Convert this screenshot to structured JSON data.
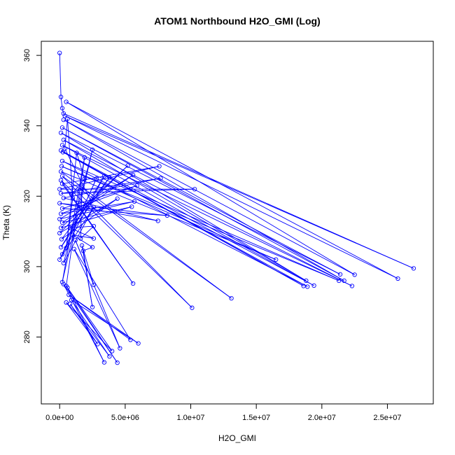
{
  "chart_data": {
    "type": "scatter",
    "title": "ATOM1 Northbound H2O_GMI (Log)",
    "xlabel": "H2O_GMI",
    "ylabel": "Theta (K)",
    "xlim": [
      -1400000,
      28500000
    ],
    "ylim": [
      261,
      364
    ],
    "x_ticks": [
      0,
      5000000,
      10000000,
      15000000,
      20000000,
      25000000
    ],
    "x_tick_labels": [
      "0.0e+00",
      "5.0e+06",
      "1.0e+07",
      "1.5e+07",
      "2.0e+07",
      "2.5e+07"
    ],
    "y_ticks": [
      280,
      300,
      320,
      340,
      360
    ],
    "y_tick_labels": [
      "280",
      "300",
      "320",
      "340",
      "360"
    ],
    "grid": false,
    "legend": "none",
    "marker": "open-circle",
    "connected": true,
    "color": "#0000ff",
    "series": [
      {
        "values": [
          [
            0,
            360.7
          ],
          [
            100000,
            348.2
          ],
          [
            200000,
            345.0
          ],
          [
            300000,
            343.5
          ],
          [
            27000000,
            299.5
          ],
          [
            400000,
            342.8
          ],
          [
            25800000,
            296.6
          ],
          [
            500000,
            346.8
          ],
          [
            22500000,
            297.7
          ],
          [
            300000,
            341.7
          ],
          [
            21700000,
            296.0
          ],
          [
            200000,
            339.5
          ],
          [
            21400000,
            297.8
          ],
          [
            100000,
            338.0
          ],
          [
            18800000,
            296.0
          ],
          [
            300000,
            336.0
          ],
          [
            22300000,
            294.5
          ],
          [
            200000,
            334.5
          ],
          [
            19400000,
            294.6
          ],
          [
            100000,
            333.0
          ],
          [
            18600000,
            294.5
          ],
          [
            250000,
            332.5
          ],
          [
            18900000,
            294.3
          ],
          [
            200000,
            330.0
          ],
          [
            21300000,
            296.0
          ],
          [
            150000,
            328.5
          ],
          [
            16500000,
            302.0
          ],
          [
            100000,
            327.0
          ],
          [
            13100000,
            291.0
          ],
          [
            200000,
            325.7
          ],
          [
            10100000,
            288.3
          ],
          [
            100000,
            324.5
          ],
          [
            5600000,
            295.2
          ],
          [
            200000,
            323.5
          ],
          [
            7600000,
            328.5
          ],
          [
            0,
            322.0
          ],
          [
            10300000,
            322.0
          ],
          [
            100000,
            320.8
          ],
          [
            7700000,
            325.1
          ],
          [
            300000,
            319.5
          ],
          [
            7500000,
            313.0
          ],
          [
            0,
            318.0
          ],
          [
            8200000,
            314.5
          ],
          [
            200000,
            316.5
          ],
          [
            5900000,
            323.0
          ],
          [
            100000,
            315.0
          ],
          [
            5700000,
            318.5
          ],
          [
            0,
            313.5
          ],
          [
            5600000,
            326.0
          ],
          [
            200000,
            312.5
          ],
          [
            5500000,
            317.0
          ],
          [
            100000,
            311.0
          ],
          [
            5200000,
            328.7
          ],
          [
            0,
            309.5
          ],
          [
            4400000,
            319.3
          ],
          [
            150000,
            307.8
          ],
          [
            3800000,
            325.3
          ],
          [
            100000,
            305.5
          ],
          [
            3400000,
            325.7
          ],
          [
            200000,
            303.5
          ],
          [
            2800000,
            325.0
          ],
          [
            0,
            302.0
          ],
          [
            2600000,
            316.9
          ],
          [
            300000,
            301.0
          ],
          [
            2500000,
            333.2
          ],
          [
            200000,
            295.6
          ],
          [
            1900000,
            331.0
          ],
          [
            500000,
            294.5
          ],
          [
            4400000,
            272.7
          ],
          [
            300000,
            295.0
          ],
          [
            3400000,
            272.8
          ],
          [
            600000,
            294.0
          ],
          [
            4000000,
            276.0
          ],
          [
            500000,
            289.8
          ],
          [
            2900000,
            278.0
          ],
          [
            800000,
            289.4
          ],
          [
            3800000,
            274.5
          ],
          [
            900000,
            290.5
          ],
          [
            6000000,
            278.2
          ],
          [
            700000,
            292.0
          ],
          [
            5400000,
            279.2
          ],
          [
            1100000,
            305.0
          ],
          [
            4600000,
            276.8
          ],
          [
            1200000,
            307.5
          ],
          [
            2600000,
            294.8
          ],
          [
            1700000,
            306.0
          ],
          [
            2500000,
            288.5
          ],
          [
            1800000,
            304.5
          ],
          [
            2500000,
            305.5
          ],
          [
            1000000,
            309.0
          ],
          [
            2600000,
            308.0
          ],
          [
            800000,
            311.0
          ],
          [
            2600000,
            311.5
          ],
          [
            1600000,
            308.0
          ],
          [
            1700000,
            322.5
          ],
          [
            900000,
            320.5
          ],
          [
            1900000,
            324.9
          ],
          [
            1300000,
            332.3
          ],
          [
            500000,
            305.3
          ],
          [
            1000000,
            319.5
          ],
          [
            600000,
            342.0
          ],
          [
            400000,
            333.5
          ],
          [
            2400000,
            318.5
          ]
        ]
      }
    ]
  }
}
